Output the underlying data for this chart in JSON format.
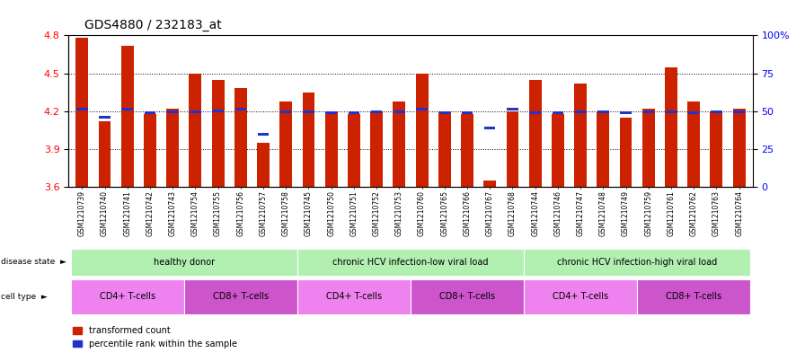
{
  "title": "GDS4880 / 232183_at",
  "samples": [
    "GSM1210739",
    "GSM1210740",
    "GSM1210741",
    "GSM1210742",
    "GSM1210743",
    "GSM1210754",
    "GSM1210755",
    "GSM1210756",
    "GSM1210757",
    "GSM1210758",
    "GSM1210745",
    "GSM1210750",
    "GSM1210751",
    "GSM1210752",
    "GSM1210753",
    "GSM1210760",
    "GSM1210765",
    "GSM1210766",
    "GSM1210767",
    "GSM1210768",
    "GSM1210744",
    "GSM1210746",
    "GSM1210747",
    "GSM1210748",
    "GSM1210749",
    "GSM1210759",
    "GSM1210761",
    "GSM1210762",
    "GSM1210763",
    "GSM1210764"
  ],
  "bar_values": [
    4.78,
    4.12,
    4.72,
    4.18,
    4.22,
    4.5,
    4.45,
    4.38,
    3.95,
    4.28,
    4.35,
    4.2,
    4.18,
    4.2,
    4.28,
    4.5,
    4.2,
    4.18,
    3.65,
    4.2,
    4.45,
    4.18,
    4.42,
    4.2,
    4.15,
    4.22,
    4.55,
    4.28,
    4.2,
    4.22
  ],
  "percentile_values": [
    4.215,
    4.155,
    4.215,
    4.185,
    4.195,
    4.195,
    4.2,
    4.215,
    4.02,
    4.195,
    4.195,
    4.185,
    4.185,
    4.195,
    4.195,
    4.215,
    4.185,
    4.185,
    4.065,
    4.215,
    4.185,
    4.185,
    4.195,
    4.195,
    4.185,
    4.195,
    4.195,
    4.185,
    4.195,
    4.195
  ],
  "ymin": 3.6,
  "ymax": 4.8,
  "yticks": [
    3.6,
    3.9,
    4.2,
    4.5,
    4.8
  ],
  "bar_color": "#CC2200",
  "percentile_color": "#2233CC",
  "disease_groups": [
    {
      "label": "healthy donor",
      "start": 0,
      "end": 9,
      "color": "#b2f0b2"
    },
    {
      "label": "chronic HCV infection-low viral load",
      "start": 10,
      "end": 19,
      "color": "#b2f0b2"
    },
    {
      "label": "chronic HCV infection-high viral load",
      "start": 20,
      "end": 29,
      "color": "#b2f0b2"
    }
  ],
  "cell_type_groups": [
    {
      "label": "CD4+ T-cells",
      "start": 0,
      "end": 4,
      "color": "#ee82ee"
    },
    {
      "label": "CD8+ T-cells",
      "start": 5,
      "end": 9,
      "color": "#cc55cc"
    },
    {
      "label": "CD4+ T-cells",
      "start": 10,
      "end": 14,
      "color": "#ee82ee"
    },
    {
      "label": "CD8+ T-cells",
      "start": 15,
      "end": 19,
      "color": "#cc55cc"
    },
    {
      "label": "CD4+ T-cells",
      "start": 20,
      "end": 24,
      "color": "#ee82ee"
    },
    {
      "label": "CD8+ T-cells",
      "start": 25,
      "end": 29,
      "color": "#cc55cc"
    }
  ],
  "legend_labels": [
    "transformed count",
    "percentile rank within the sample"
  ],
  "legend_colors": [
    "#CC2200",
    "#2233CC"
  ]
}
